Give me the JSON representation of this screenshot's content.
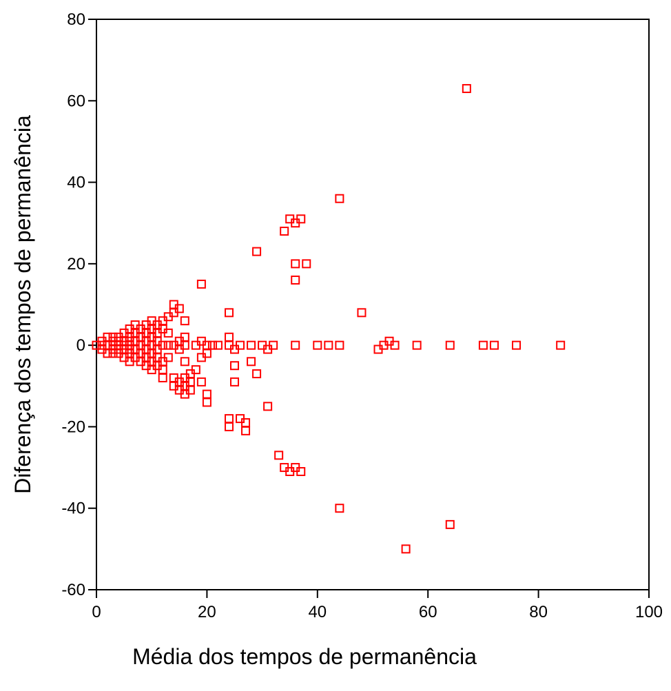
{
  "chart_data": {
    "type": "scatter",
    "title": "",
    "xlabel": "Média dos tempos de permanência",
    "ylabel": "Diferença dos tempos de permanência",
    "xlim": [
      0,
      100
    ],
    "ylim": [
      -60,
      80
    ],
    "x_ticks": [
      "0",
      "20",
      "40",
      "60",
      "80",
      "100"
    ],
    "y_ticks": [
      "80",
      "60",
      "40",
      "20",
      "0",
      "-20",
      "-40",
      "-60"
    ],
    "grid": false,
    "legend": "none",
    "marker": "open-square",
    "color": "#ff0000",
    "series": [
      {
        "points": [
          [
            0,
            0
          ],
          [
            1,
            1
          ],
          [
            1,
            -1
          ],
          [
            1,
            0
          ],
          [
            2,
            2
          ],
          [
            2,
            -2
          ],
          [
            2,
            0
          ],
          [
            3,
            1
          ],
          [
            3,
            -1
          ],
          [
            3,
            0
          ],
          [
            3,
            2
          ],
          [
            3,
            -2
          ],
          [
            4,
            0
          ],
          [
            4,
            2
          ],
          [
            4,
            -2
          ],
          [
            4,
            1
          ],
          [
            4,
            -1
          ],
          [
            5,
            3
          ],
          [
            5,
            1
          ],
          [
            5,
            -1
          ],
          [
            5,
            -3
          ],
          [
            5,
            0
          ],
          [
            6,
            2
          ],
          [
            6,
            -2
          ],
          [
            6,
            4
          ],
          [
            6,
            -4
          ],
          [
            6,
            0
          ],
          [
            6,
            1
          ],
          [
            6,
            -1
          ],
          [
            7,
            5
          ],
          [
            7,
            3
          ],
          [
            7,
            -3
          ],
          [
            7,
            1
          ],
          [
            7,
            -1
          ],
          [
            8,
            4
          ],
          [
            8,
            2
          ],
          [
            8,
            0
          ],
          [
            8,
            -2
          ],
          [
            8,
            -4
          ],
          [
            9,
            5
          ],
          [
            9,
            3
          ],
          [
            9,
            1
          ],
          [
            9,
            -1
          ],
          [
            9,
            -3
          ],
          [
            9,
            -5
          ],
          [
            10,
            6
          ],
          [
            10,
            4
          ],
          [
            10,
            2
          ],
          [
            10,
            0
          ],
          [
            10,
            -2
          ],
          [
            10,
            -4
          ],
          [
            10,
            -6
          ],
          [
            11,
            5
          ],
          [
            11,
            3
          ],
          [
            11,
            1
          ],
          [
            11,
            -1
          ],
          [
            11,
            -3
          ],
          [
            11,
            -5
          ],
          [
            12,
            6
          ],
          [
            12,
            4
          ],
          [
            12,
            0
          ],
          [
            12,
            -4
          ],
          [
            12,
            -6
          ],
          [
            12,
            -8
          ],
          [
            13,
            7
          ],
          [
            13,
            3
          ],
          [
            13,
            0
          ],
          [
            13,
            -3
          ],
          [
            14,
            10
          ],
          [
            14,
            8
          ],
          [
            14,
            0
          ],
          [
            14,
            -8
          ],
          [
            14,
            -10
          ],
          [
            15,
            9
          ],
          [
            15,
            1
          ],
          [
            15,
            -1
          ],
          [
            15,
            -9
          ],
          [
            15,
            -11
          ],
          [
            16,
            6
          ],
          [
            16,
            2
          ],
          [
            16,
            0
          ],
          [
            16,
            -4
          ],
          [
            16,
            -8
          ],
          [
            16,
            -10
          ],
          [
            16,
            -12
          ],
          [
            17,
            -7
          ],
          [
            17,
            -9
          ],
          [
            17,
            -11
          ],
          [
            18,
            0
          ],
          [
            18,
            -6
          ],
          [
            19,
            15
          ],
          [
            19,
            1
          ],
          [
            19,
            -3
          ],
          [
            19,
            -9
          ],
          [
            20,
            0
          ],
          [
            20,
            -2
          ],
          [
            20,
            -12
          ],
          [
            20,
            -14
          ],
          [
            21,
            0
          ],
          [
            22,
            0
          ],
          [
            24,
            8
          ],
          [
            24,
            2
          ],
          [
            24,
            0
          ],
          [
            24,
            -18
          ],
          [
            24,
            -20
          ],
          [
            25,
            -1
          ],
          [
            25,
            -5
          ],
          [
            25,
            -9
          ],
          [
            26,
            -18
          ],
          [
            26,
            0
          ],
          [
            27,
            -19
          ],
          [
            27,
            -21
          ],
          [
            28,
            -4
          ],
          [
            28,
            0
          ],
          [
            29,
            23
          ],
          [
            29,
            -7
          ],
          [
            30,
            0
          ],
          [
            31,
            -15
          ],
          [
            31,
            -1
          ],
          [
            32,
            0
          ],
          [
            33,
            -27
          ],
          [
            34,
            28
          ],
          [
            34,
            -30
          ],
          [
            35,
            31
          ],
          [
            35,
            -31
          ],
          [
            36,
            30
          ],
          [
            36,
            20
          ],
          [
            36,
            16
          ],
          [
            36,
            -30
          ],
          [
            36,
            0
          ],
          [
            37,
            31
          ],
          [
            37,
            -31
          ],
          [
            38,
            20
          ],
          [
            40,
            0
          ],
          [
            42,
            0
          ],
          [
            44,
            36
          ],
          [
            44,
            -40
          ],
          [
            44,
            0
          ],
          [
            48,
            8
          ],
          [
            51,
            -1
          ],
          [
            52,
            0
          ],
          [
            53,
            1
          ],
          [
            54,
            0
          ],
          [
            56,
            -50
          ],
          [
            58,
            0
          ],
          [
            64,
            0
          ],
          [
            64,
            -44
          ],
          [
            67,
            63
          ],
          [
            70,
            0
          ],
          [
            72,
            0
          ],
          [
            76,
            0
          ],
          [
            84,
            0
          ]
        ]
      }
    ]
  }
}
